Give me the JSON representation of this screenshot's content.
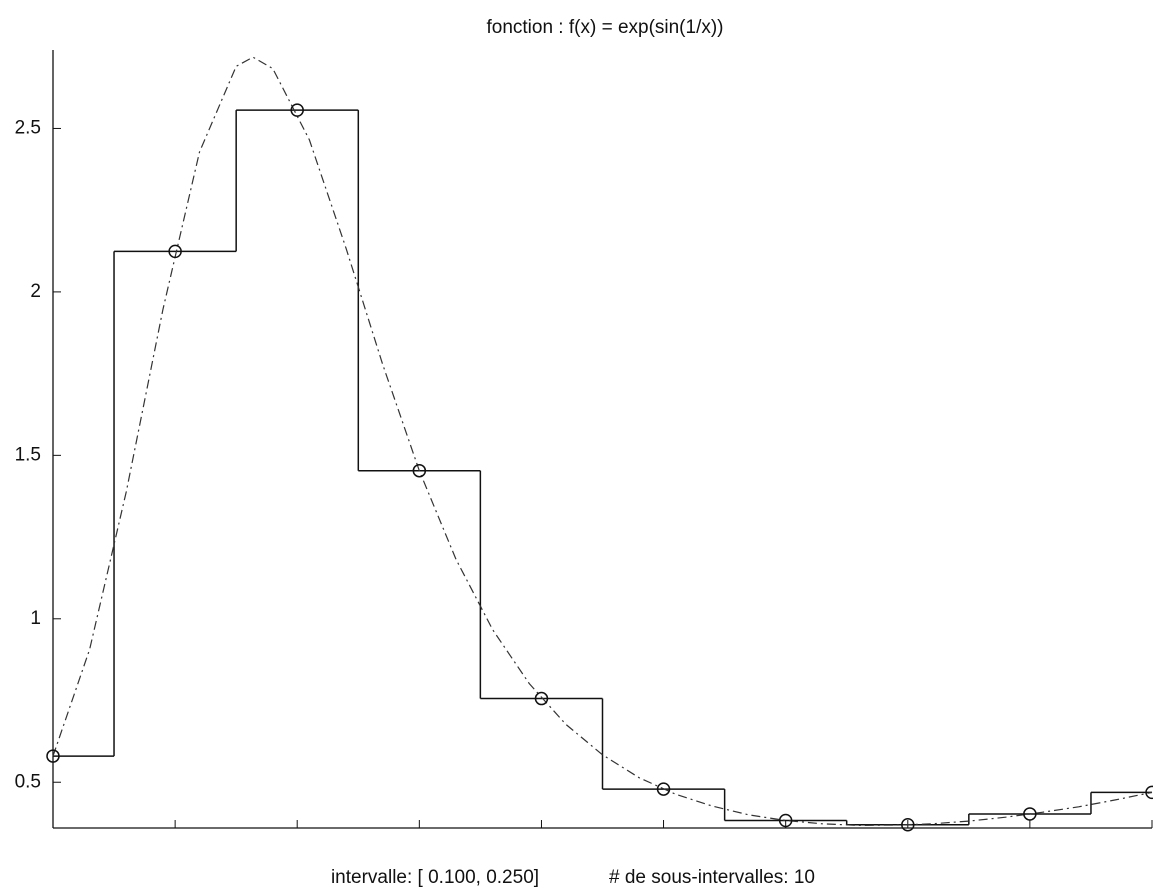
{
  "chart_data": {
    "type": "step",
    "title": "fonction :  f(x) = exp(sin(1/x))",
    "xlabel": "intervalle:  [ 0.100, 0.250]",
    "xlabel2": "# de sous-intervalles:  10",
    "xlim": [
      0.1,
      0.25
    ],
    "ylim": [
      0.36,
      2.74
    ],
    "yticks": [
      0.5,
      1,
      1.5,
      2,
      2.5
    ],
    "xticks": [
      0.1,
      0.11667,
      0.13333,
      0.15,
      0.16667,
      0.18333,
      0.2,
      0.21667,
      0.23333,
      0.25
    ],
    "curve": {
      "x": [
        0.1,
        0.105,
        0.11,
        0.115,
        0.12,
        0.125,
        0.1273,
        0.13,
        0.135,
        0.14,
        0.145,
        0.15,
        0.155,
        0.16,
        0.165,
        0.17,
        0.175,
        0.18,
        0.185,
        0.19,
        0.195,
        0.2,
        0.205,
        0.21,
        0.215,
        0.22,
        0.225,
        0.23,
        0.235,
        0.24,
        0.245,
        0.25
      ],
      "values": [
        0.58,
        0.906,
        1.389,
        1.946,
        2.428,
        2.69,
        2.718,
        2.683,
        2.465,
        2.133,
        1.778,
        1.453,
        1.182,
        0.967,
        0.802,
        0.677,
        0.584,
        0.514,
        0.463,
        0.427,
        0.4,
        0.383,
        0.373,
        0.368,
        0.369,
        0.373,
        0.381,
        0.393,
        0.408,
        0.425,
        0.446,
        0.469
      ]
    },
    "points": {
      "x": [
        0.1,
        0.11667,
        0.13333,
        0.15,
        0.16667,
        0.18333,
        0.2,
        0.21667,
        0.23333,
        0.25
      ],
      "values": [
        0.58,
        2.124,
        2.556,
        1.453,
        0.756,
        0.479,
        0.383,
        0.37,
        0.403,
        0.469
      ]
    },
    "bins": [
      0.1,
      0.10833,
      0.125,
      0.14167,
      0.15833,
      0.175,
      0.19167,
      0.20833,
      0.225,
      0.24167,
      0.25
    ]
  }
}
